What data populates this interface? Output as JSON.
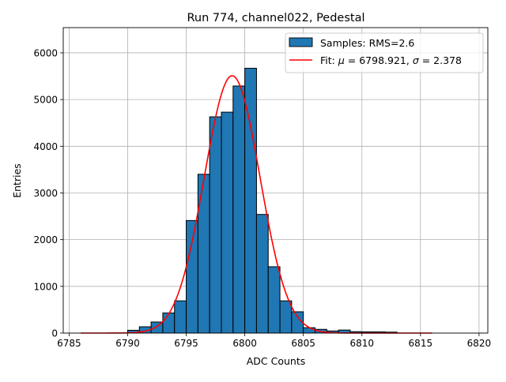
{
  "chart_data": {
    "type": "bar",
    "title": "Run 774, channel022, Pedestal",
    "xlabel": "ADC Counts",
    "ylabel": "Entries",
    "xlim": [
      6784.5,
      6820.75
    ],
    "ylim": [
      0,
      6540
    ],
    "grid": true,
    "xticks": [
      6785,
      6790,
      6795,
      6800,
      6805,
      6810,
      6815,
      6820
    ],
    "yticks": [
      0,
      1000,
      2000,
      3000,
      4000,
      5000,
      6000
    ],
    "bin_width": 1,
    "bin_edges_start": [
      6790,
      6791,
      6792,
      6793,
      6794,
      6795,
      6796,
      6797,
      6798,
      6799,
      6800,
      6801,
      6802,
      6803,
      6804,
      6805,
      6806,
      6807,
      6808,
      6809,
      6810,
      6811,
      6812
    ],
    "values": [
      60,
      135,
      237,
      430,
      690,
      2410,
      3400,
      4630,
      4730,
      5290,
      5670,
      2540,
      1420,
      690,
      456,
      115,
      80,
      45,
      65,
      30,
      25,
      25,
      20
    ],
    "fit": {
      "mu": 6798.921,
      "sigma": 2.378,
      "amplitude": 5510,
      "x_range": [
        6786,
        6816
      ]
    },
    "bar_color": "#1f77b4",
    "fit_color": "#ff0000",
    "legend": {
      "placement": "top-right",
      "entries": [
        {
          "label": "Samples: RMS=2.6"
        },
        {
          "label_prefix": "Fit: ",
          "mu_symbol": "μ",
          "mu_text": " = 6798.921, ",
          "sigma_symbol": "σ",
          "sigma_text": " = 2.378"
        }
      ]
    }
  }
}
